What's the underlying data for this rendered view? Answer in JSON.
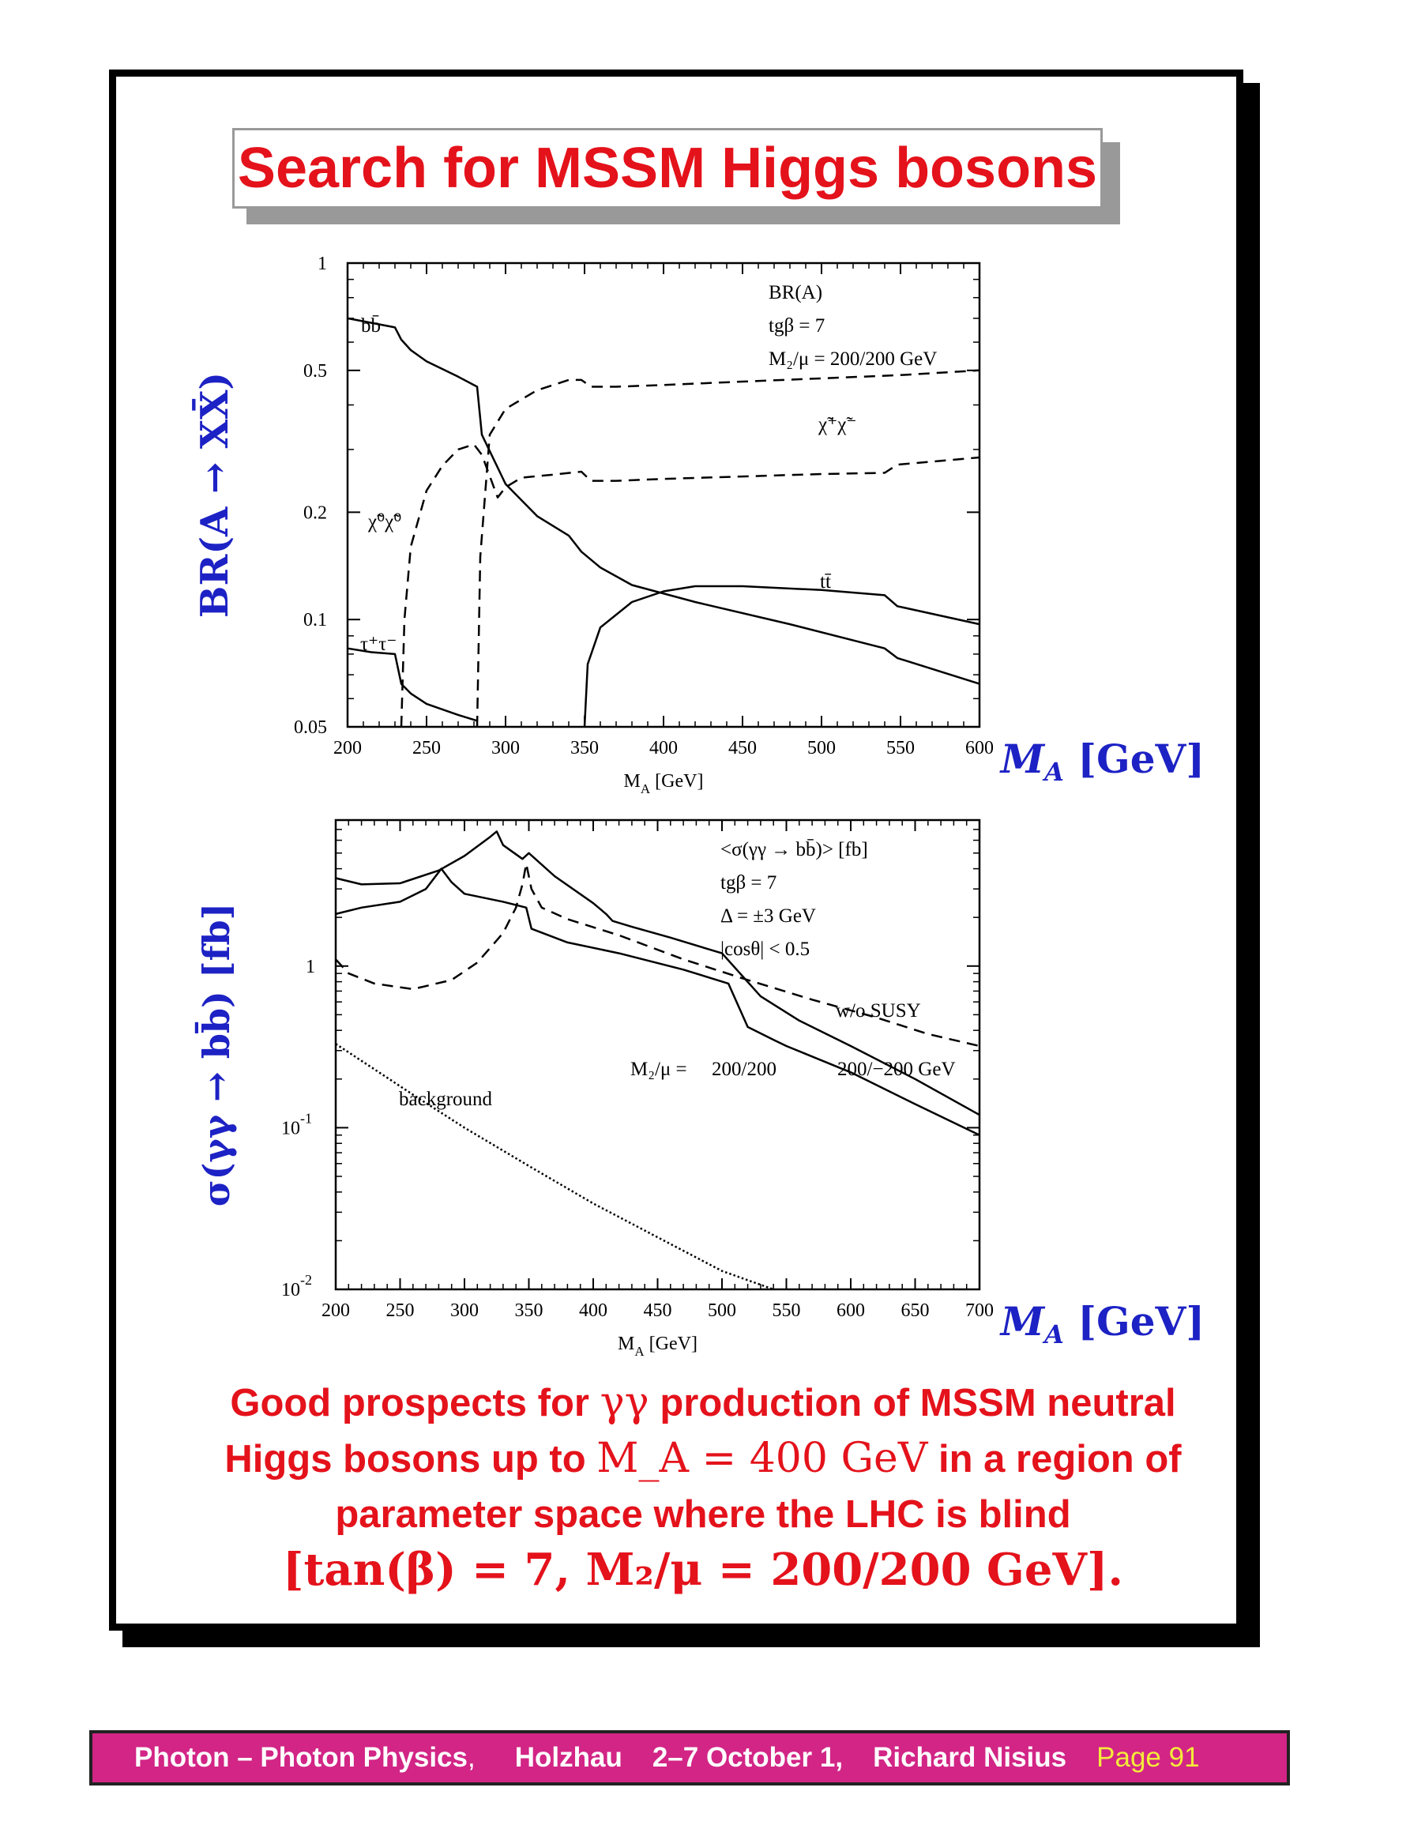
{
  "title": "Search for MSSM Higgs bosons",
  "chart_data": [
    {
      "type": "line",
      "yscale": "log",
      "xlim": [
        200,
        600
      ],
      "ylim": [
        0.05,
        1
      ],
      "x_ticks": [
        "200",
        "250",
        "300",
        "350",
        "400",
        "450",
        "500",
        "550",
        "600"
      ],
      "y_ticks": [
        "1",
        "0.5",
        "0.2",
        "0.1",
        "0.05"
      ],
      "xlabel": "M_A [GeV]",
      "ylabel": "BR(A → XX̄)",
      "xlabel_big": "M_A [GeV]",
      "legend": [
        "BR(A)",
        "tgβ = 7",
        "M₂/μ = 200/200 GeV"
      ],
      "series": [
        {
          "name": "bb̄",
          "style": "solid",
          "x": [
            200,
            215,
            230,
            234,
            240,
            250,
            270,
            282,
            285,
            300,
            320,
            340,
            348,
            360,
            380,
            420,
            480,
            540,
            548,
            600
          ],
          "y": [
            0.7,
            0.68,
            0.66,
            0.61,
            0.57,
            0.53,
            0.48,
            0.45,
            0.33,
            0.24,
            0.195,
            0.172,
            0.155,
            0.14,
            0.125,
            0.112,
            0.097,
            0.083,
            0.078,
            0.066
          ]
        },
        {
          "name": "τ⁺τ⁻",
          "style": "solid",
          "x": [
            200,
            215,
            230,
            234,
            240,
            250,
            270,
            282
          ],
          "y": [
            0.083,
            0.081,
            0.08,
            0.066,
            0.062,
            0.058,
            0.054,
            0.052
          ]
        },
        {
          "name": "tt̄",
          "style": "solid",
          "x": [
            350,
            352,
            360,
            380,
            400,
            420,
            450,
            500,
            540,
            548,
            600
          ],
          "y": [
            0.05,
            0.075,
            0.095,
            0.112,
            0.12,
            0.124,
            0.124,
            0.121,
            0.117,
            0.109,
            0.097
          ]
        },
        {
          "name": "χ̃⁰χ̃⁰",
          "style": "dashed",
          "x": [
            234,
            236,
            240,
            250,
            260,
            270,
            280,
            285,
            295,
            300,
            310,
            330,
            348,
            354,
            370,
            400,
            450,
            500,
            540,
            548,
            600
          ],
          "y": [
            0.05,
            0.1,
            0.16,
            0.23,
            0.27,
            0.3,
            0.31,
            0.29,
            0.22,
            0.235,
            0.25,
            0.255,
            0.26,
            0.245,
            0.245,
            0.248,
            0.252,
            0.256,
            0.258,
            0.272,
            0.285
          ]
        },
        {
          "name": "χ̃⁺χ̃⁻",
          "style": "dashed",
          "x": [
            282,
            284,
            290,
            300,
            320,
            340,
            348,
            354,
            370,
            400,
            450,
            500,
            550,
            600
          ],
          "y": [
            0.05,
            0.15,
            0.33,
            0.39,
            0.44,
            0.47,
            0.47,
            0.45,
            0.45,
            0.455,
            0.465,
            0.475,
            0.485,
            0.5
          ]
        }
      ]
    },
    {
      "type": "line",
      "yscale": "log",
      "xlim": [
        200,
        700
      ],
      "ylim": [
        0.01,
        8
      ],
      "x_ticks": [
        "200",
        "250",
        "300",
        "350",
        "400",
        "450",
        "500",
        "550",
        "600",
        "650",
        "700"
      ],
      "y_ticks": [
        {
          "base": "1",
          "exp": ""
        },
        {
          "base": "10",
          "exp": "-1"
        },
        {
          "base": "10",
          "exp": "-2"
        }
      ],
      "xlabel": "M_A [GeV]",
      "ylabel": "σ(γγ → bb̄) [fb]",
      "xlabel_big": "M_A [GeV]",
      "legend": [
        "<σ(γγ → bb̄)> [fb]",
        "tgβ = 7",
        "Δ = ±3 GeV",
        "|cosθ| < 0.5"
      ],
      "series": [
        {
          "name": "w/o SUSY",
          "style": "dashed",
          "x": [
            200,
            210,
            230,
            260,
            290,
            310,
            330,
            340,
            345,
            348,
            352,
            360,
            380,
            420,
            470,
            520,
            570,
            620,
            660,
            700
          ],
          "y": [
            1.1,
            0.9,
            0.78,
            0.72,
            0.82,
            1.05,
            1.6,
            2.3,
            3.2,
            4.3,
            3.0,
            2.3,
            1.95,
            1.55,
            1.1,
            0.82,
            0.62,
            0.48,
            0.38,
            0.32
          ]
        },
        {
          "name": "200/200",
          "style": "solid",
          "x": [
            200,
            220,
            250,
            280,
            300,
            320,
            325,
            330,
            345,
            350,
            370,
            400,
            410,
            415,
            430,
            460,
            500,
            530,
            560,
            600,
            650,
            700
          ],
          "y": [
            3.5,
            3.2,
            3.25,
            3.9,
            4.8,
            6.3,
            6.8,
            5.6,
            4.6,
            5.0,
            3.6,
            2.45,
            2.1,
            1.9,
            1.75,
            1.5,
            1.2,
            0.65,
            0.46,
            0.32,
            0.2,
            0.12
          ]
        },
        {
          "name": "200/−200 GeV",
          "style": "solid",
          "x": [
            200,
            220,
            250,
            270,
            282,
            290,
            300,
            330,
            348,
            352,
            380,
            420,
            470,
            505,
            520,
            540,
            550,
            600,
            650,
            700
          ],
          "y": [
            2.1,
            2.3,
            2.5,
            3.0,
            4.0,
            3.3,
            2.8,
            2.5,
            2.3,
            1.7,
            1.4,
            1.2,
            0.95,
            0.78,
            0.42,
            0.35,
            0.32,
            0.22,
            0.14,
            0.09
          ]
        },
        {
          "name": "background",
          "style": "dotted",
          "x": [
            200,
            230,
            260,
            300,
            350,
            400,
            450,
            500,
            540
          ],
          "y": [
            0.33,
            0.23,
            0.16,
            0.1,
            0.058,
            0.034,
            0.021,
            0.013,
            0.0095
          ]
        }
      ],
      "annotation_ratio": "M₂/μ =",
      "annotation_left": "200/200",
      "annotation_right": "200/−200 GeV"
    }
  ],
  "summary": {
    "line1_a": "Good prospects for ",
    "line1_math": "γγ",
    "line1_b": " production of MSSM neutral",
    "line2_a": "Higgs bosons up to ",
    "line2_math": "M_A = 400 GeV",
    "line2_b": " in a region of",
    "line3": "parameter space where the LHC is blind",
    "line4": "[tan(β) = 7, M₂/μ = 200/200 GeV]."
  },
  "footer": {
    "part1": "Photon – Photon Physics",
    "sep": ",",
    "part2": "Holzhau",
    "part3": "2–7 October 1,",
    "part4": "Richard Nisius",
    "page": "Page 91"
  }
}
